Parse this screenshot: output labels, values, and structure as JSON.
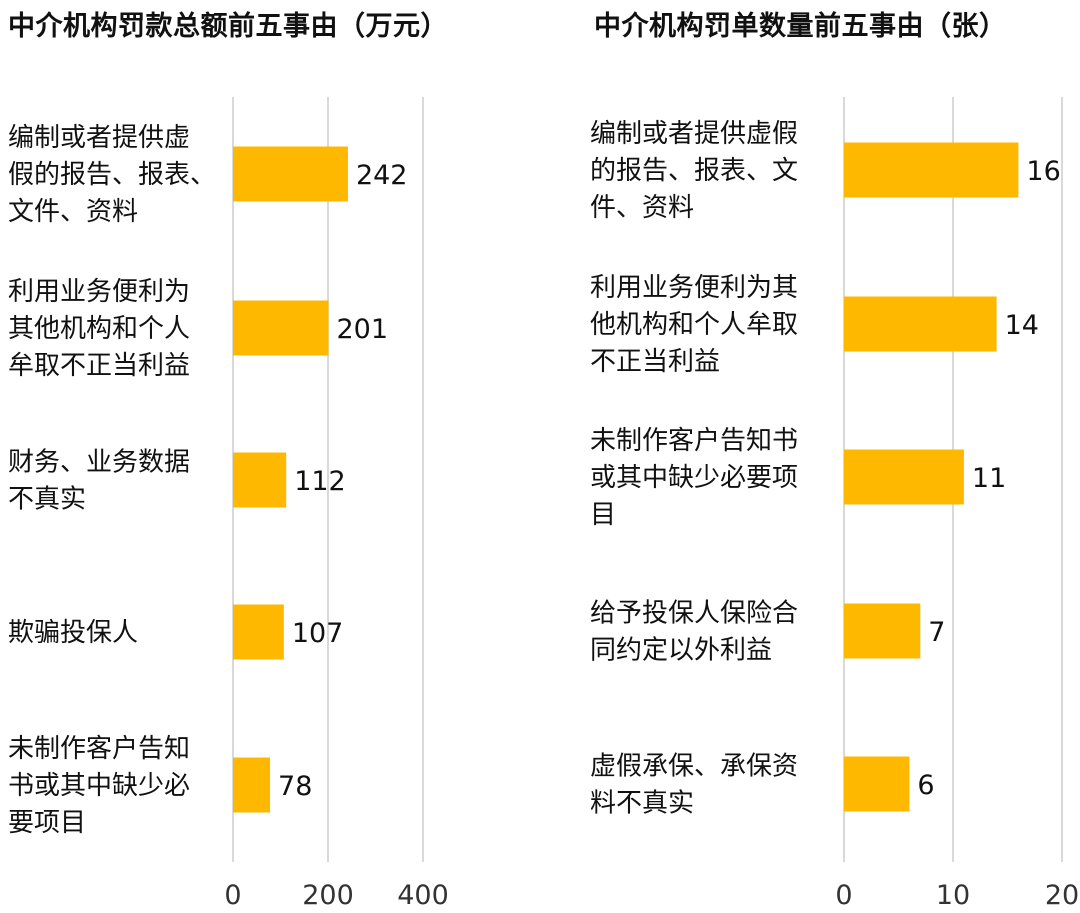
{
  "chart_data": [
    {
      "type": "bar",
      "orientation": "horizontal",
      "title": "中介机构罚款总额前五事由（万元）",
      "categories": [
        [
          "编制或者提供虚",
          "假的报告、报表、",
          "文件、资料"
        ],
        [
          "利用业务便利为",
          "其他机构和个人",
          "牟取不正当利益"
        ],
        [
          "财务、业务数据",
          "不真实"
        ],
        [
          "欺骗投保人"
        ],
        [
          "未制作客户告知",
          "书或其中缺少必",
          "要项目"
        ]
      ],
      "values": [
        242,
        201,
        112,
        107,
        78
      ],
      "xlim": [
        0,
        400
      ],
      "xticks": [
        0,
        200,
        400
      ],
      "grid": true,
      "bar_color": "#FFB800"
    },
    {
      "type": "bar",
      "orientation": "horizontal",
      "title": "中介机构罚单数量前五事由（张）",
      "categories": [
        [
          "编制或者提供虚假",
          "的报告、报表、文",
          "件、资料"
        ],
        [
          "利用业务便利为其",
          "他机构和个人牟取",
          "不正当利益"
        ],
        [
          "未制作客户告知书",
          "或其中缺少必要项",
          "目"
        ],
        [
          "给予投保人保险合",
          "同约定以外利益"
        ],
        [
          "虚假承保、承保资",
          "料不真实"
        ]
      ],
      "values": [
        16,
        14,
        11,
        7,
        6
      ],
      "xlim": [
        0,
        20
      ],
      "xticks": [
        0,
        10,
        20
      ],
      "grid": true,
      "bar_color": "#FFB800"
    }
  ]
}
